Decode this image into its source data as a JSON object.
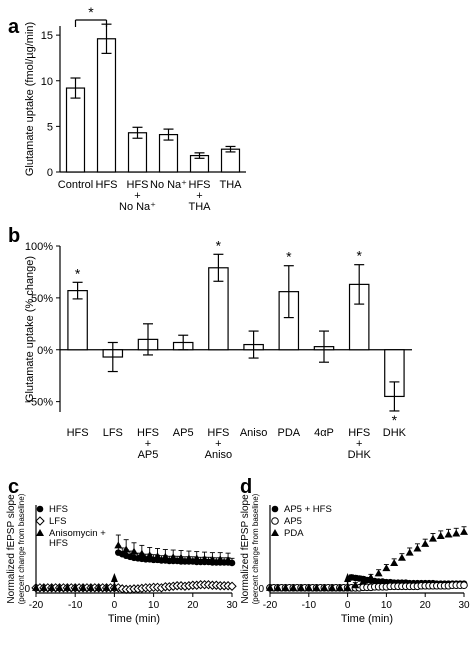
{
  "chart_data": [
    {
      "panel": "a",
      "type": "bar",
      "ylabel": "Glutamate uptake (fmol/µg/min)",
      "ylim": [
        0,
        16
      ],
      "yticks": [
        "0",
        "5",
        "10",
        "15"
      ],
      "categories": [
        [
          "Control"
        ],
        [
          "HFS"
        ],
        [
          "HFS",
          "+",
          "No Na⁺"
        ],
        [
          "No Na⁺"
        ],
        [
          "HFS",
          "+",
          "THA"
        ],
        [
          "THA"
        ]
      ],
      "values": [
        9.2,
        14.6,
        4.3,
        4.1,
        1.8,
        2.5
      ],
      "errors": [
        1.1,
        1.6,
        0.6,
        0.6,
        0.3,
        0.3
      ],
      "significance": [
        {
          "from": 0,
          "to": 1,
          "label": "*"
        }
      ]
    },
    {
      "panel": "b",
      "type": "bar",
      "ylabel": "Glutamate uptake (% change)",
      "ylim": [
        -60,
        100
      ],
      "yticks": [
        "−50%",
        "0%",
        "50%",
        "100%"
      ],
      "categories": [
        [
          "HFS"
        ],
        [
          "LFS"
        ],
        [
          "HFS",
          "+",
          "AP5"
        ],
        [
          "AP5"
        ],
        [
          "HFS",
          "+",
          "Aniso"
        ],
        [
          "Aniso"
        ],
        [
          "PDA"
        ],
        [
          "4αP"
        ],
        [
          "HFS",
          "+",
          "DHK"
        ],
        [
          "DHK"
        ]
      ],
      "values": [
        57,
        -7,
        10,
        7,
        79,
        5,
        56,
        3,
        63,
        -45
      ],
      "errors": [
        8,
        14,
        15,
        7,
        13,
        13,
        25,
        15,
        19,
        14
      ],
      "stars": [
        "*",
        "",
        "",
        "",
        "*",
        "",
        "*",
        "",
        "*",
        "*"
      ]
    },
    {
      "panel": "c",
      "type": "scatter",
      "xlabel": "Time (min)",
      "ylabel": "Normalized fEPSP slope",
      "ylabel2": "(percent change from baseline)",
      "xlim": [
        -20,
        30
      ],
      "xticks": [
        "-20",
        "-10",
        "0",
        "10",
        "20",
        "30"
      ],
      "ylim": [
        -10,
        160
      ],
      "series": [
        {
          "name": "HFS",
          "marker": "filled-circle",
          "x": [
            -20,
            -19,
            -18,
            -17,
            -16,
            -15,
            -14,
            -13,
            -12,
            -11,
            -10,
            -9,
            -8,
            -7,
            -6,
            -5,
            -4,
            -3,
            -2,
            -1,
            0,
            1,
            2,
            3,
            4,
            5,
            6,
            7,
            8,
            9,
            10,
            11,
            12,
            13,
            14,
            15,
            16,
            17,
            18,
            19,
            20,
            21,
            22,
            23,
            24,
            25,
            26,
            27,
            28,
            29,
            30
          ],
          "y": [
            0,
            0,
            0,
            0,
            0,
            0,
            0,
            0,
            0,
            0,
            0,
            0,
            0,
            0,
            0,
            0,
            0,
            0,
            0,
            0,
            0,
            68,
            65,
            62,
            60,
            58,
            57,
            56,
            55,
            55,
            54,
            54,
            53,
            53,
            52,
            52,
            52,
            51,
            51,
            51,
            51,
            50,
            50,
            50,
            50,
            49,
            49,
            49,
            49,
            49,
            48
          ],
          "err": [
            3,
            3,
            3,
            3,
            3,
            3,
            3,
            3,
            3,
            3,
            3,
            3,
            3,
            3,
            3,
            3,
            3,
            3,
            3,
            3,
            3,
            13,
            12,
            12,
            11,
            11,
            10,
            10,
            10,
            10,
            10,
            9,
            9,
            9,
            9,
            9,
            9,
            9,
            9,
            9,
            9,
            9,
            9,
            9,
            9,
            9,
            9,
            9,
            9,
            9,
            9
          ]
        },
        {
          "name": "LFS",
          "marker": "open-diamond",
          "x": [
            -20,
            -19,
            -18,
            -17,
            -16,
            -15,
            -14,
            -13,
            -12,
            -11,
            -10,
            -9,
            -8,
            -7,
            -6,
            -5,
            -4,
            -3,
            -2,
            -1,
            0,
            1,
            2,
            3,
            4,
            5,
            6,
            7,
            8,
            9,
            10,
            11,
            12,
            13,
            14,
            15,
            16,
            17,
            18,
            19,
            20,
            21,
            22,
            23,
            24,
            25,
            26,
            27,
            28,
            29,
            30
          ],
          "y": [
            0,
            0,
            0,
            0,
            0,
            0,
            0,
            0,
            0,
            0,
            0,
            0,
            0,
            0,
            0,
            0,
            0,
            0,
            0,
            0,
            0,
            0,
            -2,
            -3,
            -3,
            -2,
            -2,
            -1,
            0,
            0,
            1,
            1,
            0,
            2,
            2,
            3,
            4,
            4,
            3,
            4,
            5,
            5,
            6,
            6,
            6,
            5,
            5,
            4,
            4,
            4,
            3
          ],
          "err": [
            3,
            3,
            3,
            3,
            3,
            3,
            3,
            3,
            3,
            3,
            3,
            3,
            3,
            3,
            3,
            3,
            3,
            3,
            3,
            3,
            3,
            3,
            3,
            3,
            3,
            3,
            3,
            3,
            3,
            3,
            3,
            3,
            3,
            3,
            3,
            3,
            3,
            3,
            3,
            3,
            3,
            3,
            3,
            3,
            3,
            3,
            3,
            3,
            3,
            3,
            3
          ]
        },
        {
          "name": "Anisomycin + HFS",
          "marker": "filled-triangle",
          "x": [
            -20,
            -18,
            -16,
            -14,
            -12,
            -10,
            -8,
            -6,
            -4,
            -2,
            0,
            1,
            3,
            5,
            7,
            9,
            11,
            13,
            15,
            17,
            19,
            21,
            23,
            25,
            27,
            29
          ],
          "y": [
            0,
            0,
            0,
            0,
            0,
            0,
            0,
            0,
            0,
            0,
            0,
            82,
            74,
            70,
            66,
            63,
            61,
            60,
            59,
            58,
            57,
            57,
            56,
            55,
            55,
            54
          ],
          "err": [
            3,
            3,
            3,
            3,
            3,
            3,
            3,
            3,
            3,
            3,
            3,
            20,
            19,
            17,
            16,
            15,
            15,
            14,
            14,
            14,
            14,
            13,
            13,
            13,
            13,
            13
          ]
        }
      ],
      "legend": "top-left",
      "marker_at": 0
    },
    {
      "panel": "d",
      "type": "scatter",
      "xlabel": "Time (min)",
      "ylabel": "Normalized fEPSP slope",
      "ylabel2": "(percent change from baseline)",
      "xlim": [
        -20,
        30
      ],
      "xticks": [
        "-20",
        "-10",
        "0",
        "10",
        "20",
        "30"
      ],
      "ylim": [
        -10,
        160
      ],
      "series": [
        {
          "name": "AP5 + HFS",
          "marker": "filled-circle",
          "x": [
            -20,
            -19,
            -18,
            -17,
            -16,
            -15,
            -14,
            -13,
            -12,
            -11,
            -10,
            -9,
            -8,
            -7,
            -6,
            -5,
            -4,
            -3,
            -2,
            -1,
            0,
            1,
            2,
            3,
            4,
            5,
            6,
            7,
            8,
            9,
            10,
            11,
            12,
            13,
            14,
            15,
            16,
            17,
            18,
            19,
            20,
            21,
            22,
            23,
            24,
            25,
            26,
            27,
            28,
            29,
            30
          ],
          "y": [
            0,
            0,
            0,
            0,
            0,
            0,
            0,
            0,
            0,
            0,
            0,
            0,
            0,
            0,
            0,
            0,
            0,
            0,
            0,
            0,
            0,
            20,
            19,
            18,
            17,
            15,
            14,
            13,
            12,
            12,
            11,
            11,
            10,
            10,
            10,
            10,
            9,
            9,
            9,
            9,
            9,
            9,
            9,
            8,
            8,
            8,
            8,
            8,
            8,
            8,
            8
          ],
          "err": [
            3,
            3,
            3,
            3,
            3,
            3,
            3,
            3,
            3,
            3,
            3,
            3,
            3,
            3,
            3,
            3,
            3,
            3,
            3,
            3,
            3,
            5,
            5,
            5,
            5,
            5,
            4,
            4,
            4,
            4,
            4,
            4,
            4,
            4,
            4,
            4,
            4,
            4,
            4,
            4,
            4,
            4,
            4,
            4,
            4,
            4,
            4,
            4,
            4,
            4,
            4
          ]
        },
        {
          "name": "AP5",
          "marker": "open-circle",
          "x": [
            -20,
            -19,
            -18,
            -17,
            -16,
            -15,
            -14,
            -13,
            -12,
            -11,
            -10,
            -9,
            -8,
            -7,
            -6,
            -5,
            -4,
            -3,
            -2,
            -1,
            0,
            1,
            2,
            3,
            4,
            5,
            6,
            7,
            8,
            9,
            10,
            11,
            12,
            13,
            14,
            15,
            16,
            17,
            18,
            19,
            20,
            21,
            22,
            23,
            24,
            25,
            26,
            27,
            28,
            29,
            30
          ],
          "y": [
            0,
            0,
            0,
            0,
            0,
            0,
            0,
            0,
            0,
            0,
            0,
            0,
            0,
            0,
            0,
            0,
            0,
            0,
            0,
            0,
            0,
            0,
            0,
            0,
            1,
            1,
            1,
            2,
            2,
            2,
            2,
            3,
            3,
            3,
            3,
            3,
            3,
            3,
            3,
            4,
            4,
            4,
            4,
            4,
            4,
            4,
            4,
            5,
            5,
            5,
            5
          ],
          "err": [
            2,
            2,
            2,
            2,
            2,
            2,
            2,
            2,
            2,
            2,
            2,
            2,
            2,
            2,
            2,
            2,
            2,
            2,
            2,
            2,
            2,
            2,
            2,
            2,
            2,
            2,
            2,
            2,
            2,
            2,
            2,
            2,
            2,
            2,
            2,
            2,
            2,
            2,
            2,
            2,
            2,
            2,
            2,
            2,
            2,
            2,
            2,
            2,
            2,
            2,
            2
          ]
        },
        {
          "name": "PDA",
          "marker": "filled-triangle",
          "x": [
            -20,
            -18,
            -16,
            -14,
            -12,
            -10,
            -8,
            -6,
            -4,
            -2,
            0,
            2,
            4,
            6,
            8,
            10,
            12,
            14,
            16,
            18,
            20,
            22,
            24,
            26,
            28,
            30
          ],
          "y": [
            0,
            0,
            0,
            0,
            0,
            0,
            0,
            0,
            0,
            0,
            0,
            5,
            12,
            20,
            28,
            38,
            48,
            58,
            68,
            76,
            85,
            95,
            100,
            103,
            105,
            108
          ],
          "err": [
            3,
            3,
            3,
            3,
            3,
            3,
            3,
            3,
            3,
            3,
            3,
            5,
            6,
            6,
            7,
            7,
            8,
            8,
            9,
            9,
            9,
            10,
            10,
            10,
            10,
            10
          ]
        }
      ],
      "legend": "top-left",
      "marker_at": 0
    }
  ]
}
